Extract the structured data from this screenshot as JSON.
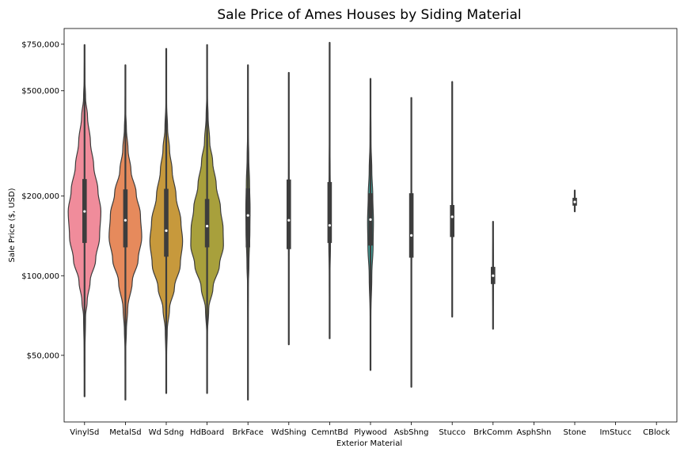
{
  "chart_data": {
    "type": "violin",
    "title": "Sale Price of Ames Houses by Siding Material",
    "xlabel": "Exterior Material",
    "ylabel": "Sale Price ($, USD)",
    "yscale": "log",
    "ylim": [
      28000,
      860000
    ],
    "yticks": [
      50000,
      100000,
      200000,
      500000,
      750000
    ],
    "ytick_labels": [
      "$50,000",
      "$100,000",
      "$200,000",
      "$500,000",
      "$750,000"
    ],
    "grid": false,
    "categories": [
      "VinylSd",
      "MetalSd",
      "Wd Sdng",
      "HdBoard",
      "BrkFace",
      "WdShing",
      "CemntBd",
      "Plywood",
      "AsbShng",
      "Stucco",
      "BrkComm",
      "AsphShn",
      "Stone",
      "ImStucc",
      "CBlock"
    ],
    "colors": [
      "#f08c9b",
      "#e68a5c",
      "#c7993c",
      "#a8a03c",
      "#96a83c",
      "#4fae5a",
      "#42ad8c",
      "#40a8a0",
      "#47a7bf",
      "#5aa3e0",
      "#9999ea",
      "#c48de8",
      "#e58ad8",
      "#f08bb8",
      "#f48ca6"
    ],
    "violins": [
      {
        "category": "VinylSd",
        "min": 35000,
        "q1": 133000,
        "median": 175000,
        "q3": 232000,
        "max": 745000,
        "profile": [
          [
            36000,
            0.0
          ],
          [
            50000,
            0.02
          ],
          [
            70000,
            0.06
          ],
          [
            80000,
            0.16
          ],
          [
            95000,
            0.34
          ],
          [
            115000,
            0.68
          ],
          [
            140000,
            0.92
          ],
          [
            175000,
            1.0
          ],
          [
            210000,
            0.82
          ],
          [
            260000,
            0.56
          ],
          [
            320000,
            0.36
          ],
          [
            400000,
            0.18
          ],
          [
            470000,
            0.06
          ],
          [
            560000,
            0.02
          ],
          [
            745000,
            0.0
          ]
        ]
      },
      {
        "category": "MetalSd",
        "min": 34000,
        "q1": 128000,
        "median": 162000,
        "q3": 212000,
        "max": 625000,
        "profile": [
          [
            34000,
            0.0
          ],
          [
            52000,
            0.02
          ],
          [
            62000,
            0.06
          ],
          [
            75000,
            0.14
          ],
          [
            95000,
            0.42
          ],
          [
            115000,
            0.78
          ],
          [
            140000,
            1.0
          ],
          [
            170000,
            0.92
          ],
          [
            205000,
            0.66
          ],
          [
            250000,
            0.34
          ],
          [
            300000,
            0.16
          ],
          [
            360000,
            0.06
          ],
          [
            420000,
            0.02
          ],
          [
            625000,
            0.0
          ]
        ]
      },
      {
        "category": "Wd Sdng",
        "min": 36000,
        "q1": 118000,
        "median": 148000,
        "q3": 213000,
        "max": 720000,
        "profile": [
          [
            36000,
            0.0
          ],
          [
            50000,
            0.02
          ],
          [
            62000,
            0.06
          ],
          [
            75000,
            0.2
          ],
          [
            90000,
            0.5
          ],
          [
            110000,
            0.86
          ],
          [
            135000,
            1.0
          ],
          [
            160000,
            0.9
          ],
          [
            200000,
            0.6
          ],
          [
            250000,
            0.36
          ],
          [
            300000,
            0.2
          ],
          [
            360000,
            0.08
          ],
          [
            450000,
            0.02
          ],
          [
            720000,
            0.0
          ]
        ]
      },
      {
        "category": "HdBoard",
        "min": 36000,
        "q1": 128000,
        "median": 154000,
        "q3": 195000,
        "max": 745000,
        "profile": [
          [
            36000,
            0.0
          ],
          [
            60000,
            0.02
          ],
          [
            75000,
            0.1
          ],
          [
            90000,
            0.36
          ],
          [
            110000,
            0.76
          ],
          [
            130000,
            1.0
          ],
          [
            150000,
            0.98
          ],
          [
            180000,
            0.82
          ],
          [
            220000,
            0.56
          ],
          [
            270000,
            0.34
          ],
          [
            320000,
            0.16
          ],
          [
            400000,
            0.06
          ],
          [
            480000,
            0.02
          ],
          [
            745000,
            0.0
          ]
        ]
      },
      {
        "category": "BrkFace",
        "min": 34000,
        "q1": 128000,
        "median": 169000,
        "q3": 214000,
        "max": 625000,
        "profile": [
          [
            34000,
            0.0
          ],
          [
            60000,
            0.0
          ],
          [
            90000,
            0.02
          ],
          [
            110000,
            0.06
          ],
          [
            150000,
            0.12
          ],
          [
            180000,
            0.13
          ],
          [
            220000,
            0.1
          ],
          [
            280000,
            0.05
          ],
          [
            350000,
            0.02
          ],
          [
            625000,
            0.0
          ]
        ]
      },
      {
        "category": "WdShing",
        "min": 55000,
        "q1": 126000,
        "median": 162000,
        "q3": 231000,
        "max": 585000,
        "profile": [
          [
            55000,
            0.0
          ],
          [
            110000,
            0.01
          ],
          [
            150000,
            0.02
          ],
          [
            200000,
            0.02
          ],
          [
            300000,
            0.01
          ],
          [
            585000,
            0.0
          ]
        ]
      },
      {
        "category": "CemntBd",
        "min": 58000,
        "q1": 133000,
        "median": 155000,
        "q3": 226000,
        "max": 760000,
        "profile": [
          [
            58000,
            0.0
          ],
          [
            100000,
            0.02
          ],
          [
            130000,
            0.05
          ],
          [
            160000,
            0.06
          ],
          [
            200000,
            0.05
          ],
          [
            250000,
            0.03
          ],
          [
            350000,
            0.01
          ],
          [
            760000,
            0.0
          ]
        ]
      },
      {
        "category": "Plywood",
        "min": 44000,
        "q1": 130000,
        "median": 163000,
        "q3": 205000,
        "max": 555000,
        "profile": [
          [
            44000,
            0.0
          ],
          [
            70000,
            0.02
          ],
          [
            100000,
            0.08
          ],
          [
            130000,
            0.16
          ],
          [
            160000,
            0.18
          ],
          [
            200000,
            0.14
          ],
          [
            250000,
            0.08
          ],
          [
            320000,
            0.03
          ],
          [
            555000,
            0.0
          ]
        ]
      },
      {
        "category": "AsbShng",
        "min": 38000,
        "q1": 117000,
        "median": 142000,
        "q3": 205000,
        "max": 470000,
        "profile": [
          [
            38000,
            0.0
          ],
          [
            90000,
            0.01
          ],
          [
            130000,
            0.02
          ],
          [
            180000,
            0.02
          ],
          [
            250000,
            0.01
          ],
          [
            470000,
            0.0
          ]
        ]
      },
      {
        "category": "Stucco",
        "min": 70000,
        "q1": 140000,
        "median": 167000,
        "q3": 185000,
        "max": 540000,
        "profile": [
          [
            70000,
            0.0
          ],
          [
            130000,
            0.01
          ],
          [
            170000,
            0.02
          ],
          [
            220000,
            0.01
          ],
          [
            540000,
            0.0
          ]
        ]
      },
      {
        "category": "BrkComm",
        "min": 63000,
        "q1": 93000,
        "median": 100000,
        "q3": 108000,
        "max": 160000,
        "profile": [
          [
            63000,
            0.0
          ],
          [
            90000,
            0.02
          ],
          [
            100000,
            0.03
          ],
          [
            115000,
            0.02
          ],
          [
            160000,
            0.0
          ]
        ]
      },
      {
        "category": "Stone",
        "min": 175000,
        "q1": 184000,
        "median": 190000,
        "q3": 197000,
        "max": 210000,
        "profile": [
          [
            175000,
            0.0
          ],
          [
            190000,
            0.02
          ],
          [
            210000,
            0.0
          ]
        ]
      }
    ]
  }
}
